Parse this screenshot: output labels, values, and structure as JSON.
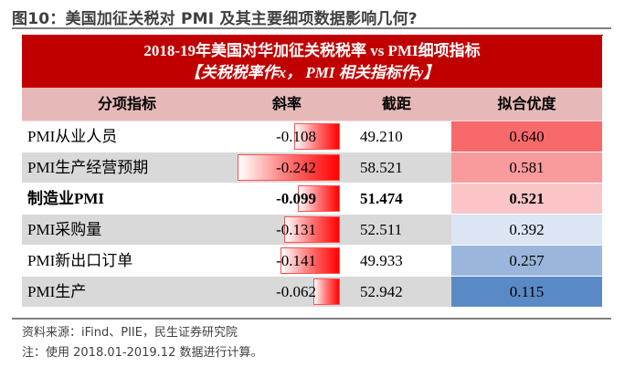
{
  "figure": {
    "title": "图10：美国加征关税对 PMI 及其主要细项数据影响几何?"
  },
  "table": {
    "banner_line1": "2018-19年美国对华加征关税税率 vs PMI细项指标",
    "banner_line2": "【关税税率作x， PMI 相关指标作y】",
    "columns": [
      "分项指标",
      "斜率",
      "截距",
      "拟合优度"
    ],
    "rows": [
      {
        "name": "PMI从业人员",
        "slope": "-0.108",
        "intercept": "49.210",
        "r2": "0.640",
        "r2_color": "#f8696b",
        "bold": false
      },
      {
        "name": "PMI生产经营预期",
        "slope": "-0.242",
        "intercept": "58.521",
        "r2": "0.581",
        "r2_color": "#f99b9c",
        "bold": false
      },
      {
        "name": "制造业PMI",
        "slope": "-0.099",
        "intercept": "51.474",
        "r2": "0.521",
        "r2_color": "#fbc5c7",
        "bold": true
      },
      {
        "name": "PMI采购量",
        "slope": "-0.131",
        "intercept": "52.511",
        "r2": "0.392",
        "r2_color": "#dce5f4",
        "bold": false
      },
      {
        "name": "PMI新出口订单",
        "slope": "-0.141",
        "intercept": "49.933",
        "r2": "0.257",
        "r2_color": "#9ab6dd",
        "bold": false
      },
      {
        "name": "PMI生产",
        "slope": "-0.062",
        "intercept": "52.942",
        "r2": "0.115",
        "r2_color": "#5a8ac6",
        "bold": false
      }
    ]
  },
  "chart_data": {
    "type": "table",
    "title": "2018-19年美国对华加征关税税率 vs PMI细项指标",
    "subtitle": "【关税税率作x， PMI 相关指标作y】",
    "columns": [
      "分项指标",
      "斜率",
      "截距",
      "拟合优度"
    ],
    "rows": [
      [
        "PMI从业人员",
        -0.108,
        49.21,
        0.64
      ],
      [
        "PMI生产经营预期",
        -0.242,
        58.521,
        0.581
      ],
      [
        "制造业PMI",
        -0.099,
        51.474,
        0.521
      ],
      [
        "PMI采购量",
        -0.131,
        52.511,
        0.392
      ],
      [
        "PMI新出口订单",
        -0.141,
        49.933,
        0.257
      ],
      [
        "PMI生产",
        -0.062,
        52.942,
        0.115
      ]
    ],
    "slope_data_bars": {
      "color": "#ff0000",
      "max_abs": 0.242
    }
  },
  "footer": {
    "source": "资料来源：iFind、PIIE，民生证券研究院",
    "note": "注：使用 2018.01-2019.12 数据进行计算。"
  }
}
